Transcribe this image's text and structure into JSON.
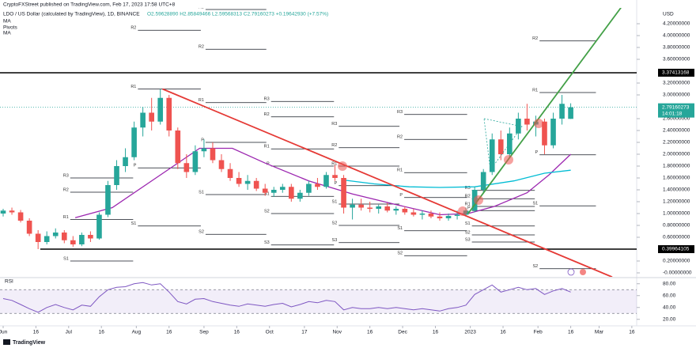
{
  "chart_data": {
    "type": "candlestick",
    "publisher": "CryptoFXStreet published on TradingView.com, Feb 17, 2023 17:58 UTC+8",
    "symbol": "LDO / US Dollar (calculated by TradingView), 1D, BINANCE",
    "ohlc_text": "O2.59628890 H2.85849466 L2.59568313 C2.79160273 +0.19642930 (+7.57%)",
    "indicators": [
      "MA",
      "Pivots",
      "MA"
    ],
    "currency": "USD",
    "brand": "TradingView",
    "up_color": "#26a69a",
    "down_color": "#ef5350",
    "x": [
      0,
      4,
      8,
      12,
      16,
      20,
      24,
      28,
      32,
      36,
      40,
      44,
      48,
      52,
      56,
      60,
      64,
      68,
      72,
      76,
      80,
      84,
      88,
      92,
      96,
      100,
      104,
      108,
      112,
      116,
      120,
      124,
      128,
      132,
      136,
      140,
      144,
      148,
      152,
      156,
      160,
      164,
      168,
      172,
      176,
      180,
      184,
      188,
      192,
      196,
      200,
      204,
      208,
      212,
      216,
      220,
      224,
      228,
      232,
      236,
      240,
      244,
      248,
      252,
      256,
      260
    ],
    "open": [
      1.0,
      1.05,
      1.02,
      0.88,
      0.66,
      0.52,
      0.62,
      0.68,
      0.55,
      0.48,
      0.64,
      0.58,
      0.98,
      1.48,
      1.8,
      1.95,
      2.45,
      2.7,
      2.55,
      2.95,
      2.4,
      1.85,
      1.7,
      2.05,
      2.1,
      1.9,
      1.75,
      1.6,
      1.5,
      1.55,
      1.42,
      1.35,
      1.4,
      1.45,
      1.25,
      1.35,
      1.5,
      1.45,
      1.65,
      1.6,
      1.1,
      1.15,
      1.1,
      1.08,
      1.12,
      1.05,
      1.08,
      1.02,
      0.98,
      1.0,
      0.95,
      0.92,
      0.96,
      0.98,
      1.05,
      1.4,
      1.7,
      2.25,
      2.0,
      2.35,
      2.6,
      2.5,
      2.55,
      2.15,
      2.6,
      2.5962889
    ],
    "high": [
      1.08,
      1.1,
      1.06,
      0.92,
      0.72,
      0.7,
      0.75,
      0.72,
      0.62,
      0.68,
      0.7,
      1.02,
      1.55,
      1.9,
      2.1,
      2.55,
      2.8,
      2.95,
      3.1,
      3.0,
      2.45,
      2.0,
      2.15,
      2.25,
      2.2,
      2.0,
      1.85,
      1.7,
      1.65,
      1.6,
      1.5,
      1.45,
      1.5,
      1.5,
      1.4,
      1.55,
      1.6,
      1.7,
      1.82,
      1.65,
      1.25,
      1.25,
      1.2,
      1.15,
      1.18,
      1.12,
      1.12,
      1.08,
      1.05,
      1.05,
      1.02,
      1.0,
      1.05,
      1.1,
      1.45,
      1.75,
      2.35,
      2.4,
      2.45,
      2.7,
      2.85,
      2.65,
      2.6,
      2.7,
      3.0,
      2.85849466
    ],
    "low": [
      0.95,
      0.98,
      0.85,
      0.62,
      0.4,
      0.48,
      0.58,
      0.5,
      0.44,
      0.45,
      0.52,
      0.56,
      0.94,
      1.4,
      1.7,
      1.9,
      2.3,
      2.4,
      2.5,
      2.3,
      1.75,
      1.6,
      1.65,
      1.95,
      1.85,
      1.7,
      1.55,
      1.45,
      1.4,
      1.38,
      1.3,
      1.28,
      1.35,
      1.2,
      1.2,
      1.3,
      1.4,
      1.42,
      1.55,
      1.0,
      0.9,
      1.05,
      1.02,
      1.0,
      1.02,
      0.98,
      0.98,
      0.95,
      0.9,
      0.92,
      0.88,
      0.88,
      0.9,
      0.95,
      1.02,
      1.35,
      1.65,
      1.9,
      1.95,
      2.25,
      2.4,
      2.3,
      2.0,
      2.1,
      2.5,
      2.59568313
    ],
    "close": [
      1.05,
      1.02,
      0.88,
      0.66,
      0.52,
      0.62,
      0.68,
      0.55,
      0.48,
      0.64,
      0.58,
      0.98,
      1.48,
      1.8,
      1.95,
      2.45,
      2.7,
      2.55,
      2.95,
      2.4,
      1.85,
      1.7,
      2.05,
      2.1,
      1.9,
      1.75,
      1.6,
      1.5,
      1.55,
      1.42,
      1.35,
      1.4,
      1.45,
      1.25,
      1.35,
      1.5,
      1.45,
      1.65,
      1.6,
      1.1,
      1.15,
      1.1,
      1.08,
      1.12,
      1.05,
      1.08,
      1.02,
      0.98,
      1.0,
      0.95,
      0.92,
      0.96,
      0.98,
      1.05,
      1.4,
      1.7,
      2.25,
      2.0,
      2.35,
      2.6,
      2.5,
      2.55,
      2.15,
      2.6,
      2.85,
      2.79160273
    ],
    "xlim": [
      -1.45,
      290.22
    ],
    "xticks": [
      {
        "value": 0,
        "label": "Jun"
      },
      {
        "value": 15,
        "label": "16"
      },
      {
        "value": 30,
        "label": "Jul"
      },
      {
        "value": 45,
        "label": "16"
      },
      {
        "value": 61,
        "label": "Aug"
      },
      {
        "value": 76,
        "label": "16"
      },
      {
        "value": 92,
        "label": "Sep"
      },
      {
        "value": 107,
        "label": "16"
      },
      {
        "value": 122,
        "label": "Oct"
      },
      {
        "value": 138,
        "label": "17"
      },
      {
        "value": 153,
        "label": "Nov"
      },
      {
        "value": 168,
        "label": "16"
      },
      {
        "value": 183,
        "label": "Dec"
      },
      {
        "value": 198,
        "label": "16"
      },
      {
        "value": 214,
        "label": "2023"
      },
      {
        "value": 229,
        "label": "16"
      },
      {
        "value": 245,
        "label": "Feb"
      },
      {
        "value": 260,
        "label": "16"
      },
      {
        "value": 273,
        "label": "Mar"
      },
      {
        "value": 288,
        "label": "16"
      }
    ],
    "ylim": [
      -0.0667,
      4.4667
    ],
    "yticks": [
      {
        "value": 4.2,
        "label": "4.20000000"
      },
      {
        "value": 4.0,
        "label": "4.00000000"
      },
      {
        "value": 3.8,
        "label": "3.80000000"
      },
      {
        "value": 3.6,
        "label": "3.60000000"
      },
      {
        "value": 3.2,
        "label": "3.20000000"
      },
      {
        "value": 3.0,
        "label": "3.00000000"
      },
      {
        "value": 2.6,
        "label": "2.60000000"
      },
      {
        "value": 2.4,
        "label": "2.40000000"
      },
      {
        "value": 2.2,
        "label": "2.20000000"
      },
      {
        "value": 2.0,
        "label": "2.00000000"
      },
      {
        "value": 1.8,
        "label": "1.80000000"
      },
      {
        "value": 1.6,
        "label": "1.60000000"
      },
      {
        "value": 1.4,
        "label": "1.40000000"
      },
      {
        "value": 1.2,
        "label": "1.20000000"
      },
      {
        "value": 1.0,
        "label": "1.00000000"
      },
      {
        "value": 0.8,
        "label": "0.80000000"
      },
      {
        "value": 0.6,
        "label": "0.60000000"
      },
      {
        "value": 0.2,
        "label": "0.20000000"
      },
      {
        "value": 0,
        "label": "-0.00000000"
      }
    ],
    "price_labels": [
      {
        "value": 3.37413168,
        "label": "3.37413168",
        "color": "#000000",
        "line_style": "solid"
      },
      {
        "value": 2.79160273,
        "label": "2.79160273",
        "sublabel": "14:01:18",
        "color": "#26a69a",
        "line_style": "dotted"
      },
      {
        "value": 0.39964105,
        "label": "0.39964105",
        "color": "#000000",
        "line_style": "solid",
        "from": 17
      }
    ],
    "pivots": [
      {
        "from": 30,
        "to": 61,
        "levels": [
          {
            "label": "R3",
            "value": 1.6
          },
          {
            "label": "R2",
            "value": 1.36
          },
          {
            "label": "R1",
            "value": 0.9
          },
          {
            "label": "S1",
            "value": 0.2
          }
        ]
      },
      {
        "from": 61,
        "to": 92,
        "levels": [
          {
            "label": "R2",
            "value": 4.09
          },
          {
            "label": "R1",
            "value": 3.1
          },
          {
            "label": "P",
            "value": 1.77
          },
          {
            "label": "S1",
            "value": 0.79
          }
        ]
      },
      {
        "from": 92,
        "to": 122,
        "levels": [
          {
            "label": "R3",
            "value": 4.44
          },
          {
            "label": "R2",
            "value": 3.77
          },
          {
            "label": "R1",
            "value": 2.87
          },
          {
            "label": "P",
            "value": 2.2
          },
          {
            "label": "S1",
            "value": 1.32
          },
          {
            "label": "S2",
            "value": 0.65
          }
        ]
      },
      {
        "from": 122,
        "to": 153,
        "levels": [
          {
            "label": "R3",
            "value": 2.89
          },
          {
            "label": "R2",
            "value": 2.63
          },
          {
            "label": "R1",
            "value": 2.09
          },
          {
            "label": "P",
            "value": 1.8
          },
          {
            "label": "S1",
            "value": 1.29
          },
          {
            "label": "S2",
            "value": 1.0
          },
          {
            "label": "S3",
            "value": 0.47
          }
        ]
      },
      {
        "from": 153,
        "to": 183,
        "levels": [
          {
            "label": "R3",
            "value": 2.47
          },
          {
            "label": "R2",
            "value": 2.11
          },
          {
            "label": "R1",
            "value": 1.8
          },
          {
            "label": "P",
            "value": 1.47
          },
          {
            "label": "S1",
            "value": 1.16
          },
          {
            "label": "S2",
            "value": 0.8
          },
          {
            "label": "S3",
            "value": 0.51
          }
        ]
      },
      {
        "from": 183,
        "to": 214,
        "levels": [
          {
            "label": "R3",
            "value": 2.67
          },
          {
            "label": "R2",
            "value": 2.25
          },
          {
            "label": "R1",
            "value": 1.69
          },
          {
            "label": "P",
            "value": 1.27
          },
          {
            "label": "S1",
            "value": 0.71
          },
          {
            "label": "S2",
            "value": 0.29
          }
        ]
      },
      {
        "from": 214,
        "to": 245,
        "levels": [
          {
            "label": "R3",
            "value": 1.39
          },
          {
            "label": "R2",
            "value": 1.25
          },
          {
            "label": "R1",
            "value": 1.12
          },
          {
            "label": "P",
            "value": 1.05
          },
          {
            "label": "S1",
            "value": 0.79
          },
          {
            "label": "S2",
            "value": 0.64
          },
          {
            "label": "S3",
            "value": 0.52
          }
        ]
      },
      {
        "from": 245,
        "to": 273,
        "levels": [
          {
            "label": "R2",
            "value": 3.91
          },
          {
            "label": "R1",
            "value": 3.04
          },
          {
            "label": "P",
            "value": 1.99
          },
          {
            "label": "S1",
            "value": 1.13
          },
          {
            "label": "S2",
            "value": 0.07
          }
        ]
      }
    ],
    "trendlines": [
      {
        "color": "#e53935",
        "x": [
          73,
          279
        ],
        "y": [
          3.1,
          -0.07
        ]
      },
      {
        "color": "#43a047",
        "x": [
          213,
          283
        ],
        "y": [
          1.0,
          4.47
        ]
      }
    ],
    "ma": [
      {
        "color": "#9c27b0",
        "x": [
          33,
          50,
          70,
          90,
          105,
          120,
          140,
          160,
          180,
          200,
          213,
          225,
          240,
          250,
          260
        ],
        "values": [
          0.93,
          1.1,
          1.6,
          2.1,
          2.1,
          1.85,
          1.55,
          1.33,
          1.15,
          0.98,
          1.0,
          1.12,
          1.35,
          1.65,
          2.0
        ]
      },
      {
        "color": "#00bcd4",
        "x": [
          157,
          170,
          186,
          200,
          216,
          234,
          248,
          260
        ],
        "values": [
          1.56,
          1.5,
          1.45,
          1.44,
          1.45,
          1.55,
          1.68,
          1.73
        ]
      }
    ],
    "rsi": {
      "title": "RSI",
      "color": "#7e57c2",
      "band": [
        30,
        70
      ],
      "ylim": [
        9,
        89
      ],
      "yticks": [
        {
          "value": 80,
          "label": "80.00"
        },
        {
          "value": 60,
          "label": "60.00"
        },
        {
          "value": 40,
          "label": "40.00"
        },
        {
          "value": 20,
          "label": "20.00"
        }
      ],
      "values": [
        55,
        52,
        45,
        38,
        32,
        40,
        45,
        40,
        36,
        44,
        42,
        58,
        70,
        74,
        75,
        80,
        82,
        78,
        80,
        66,
        50,
        46,
        54,
        55,
        50,
        47,
        44,
        42,
        46,
        44,
        42,
        45,
        47,
        41,
        45,
        50,
        48,
        52,
        50,
        36,
        40,
        38,
        38,
        40,
        38,
        40,
        38,
        36,
        38,
        36,
        34,
        38,
        40,
        44,
        62,
        70,
        78,
        66,
        70,
        74,
        70,
        72,
        62,
        68,
        72,
        66
      ]
    }
  }
}
